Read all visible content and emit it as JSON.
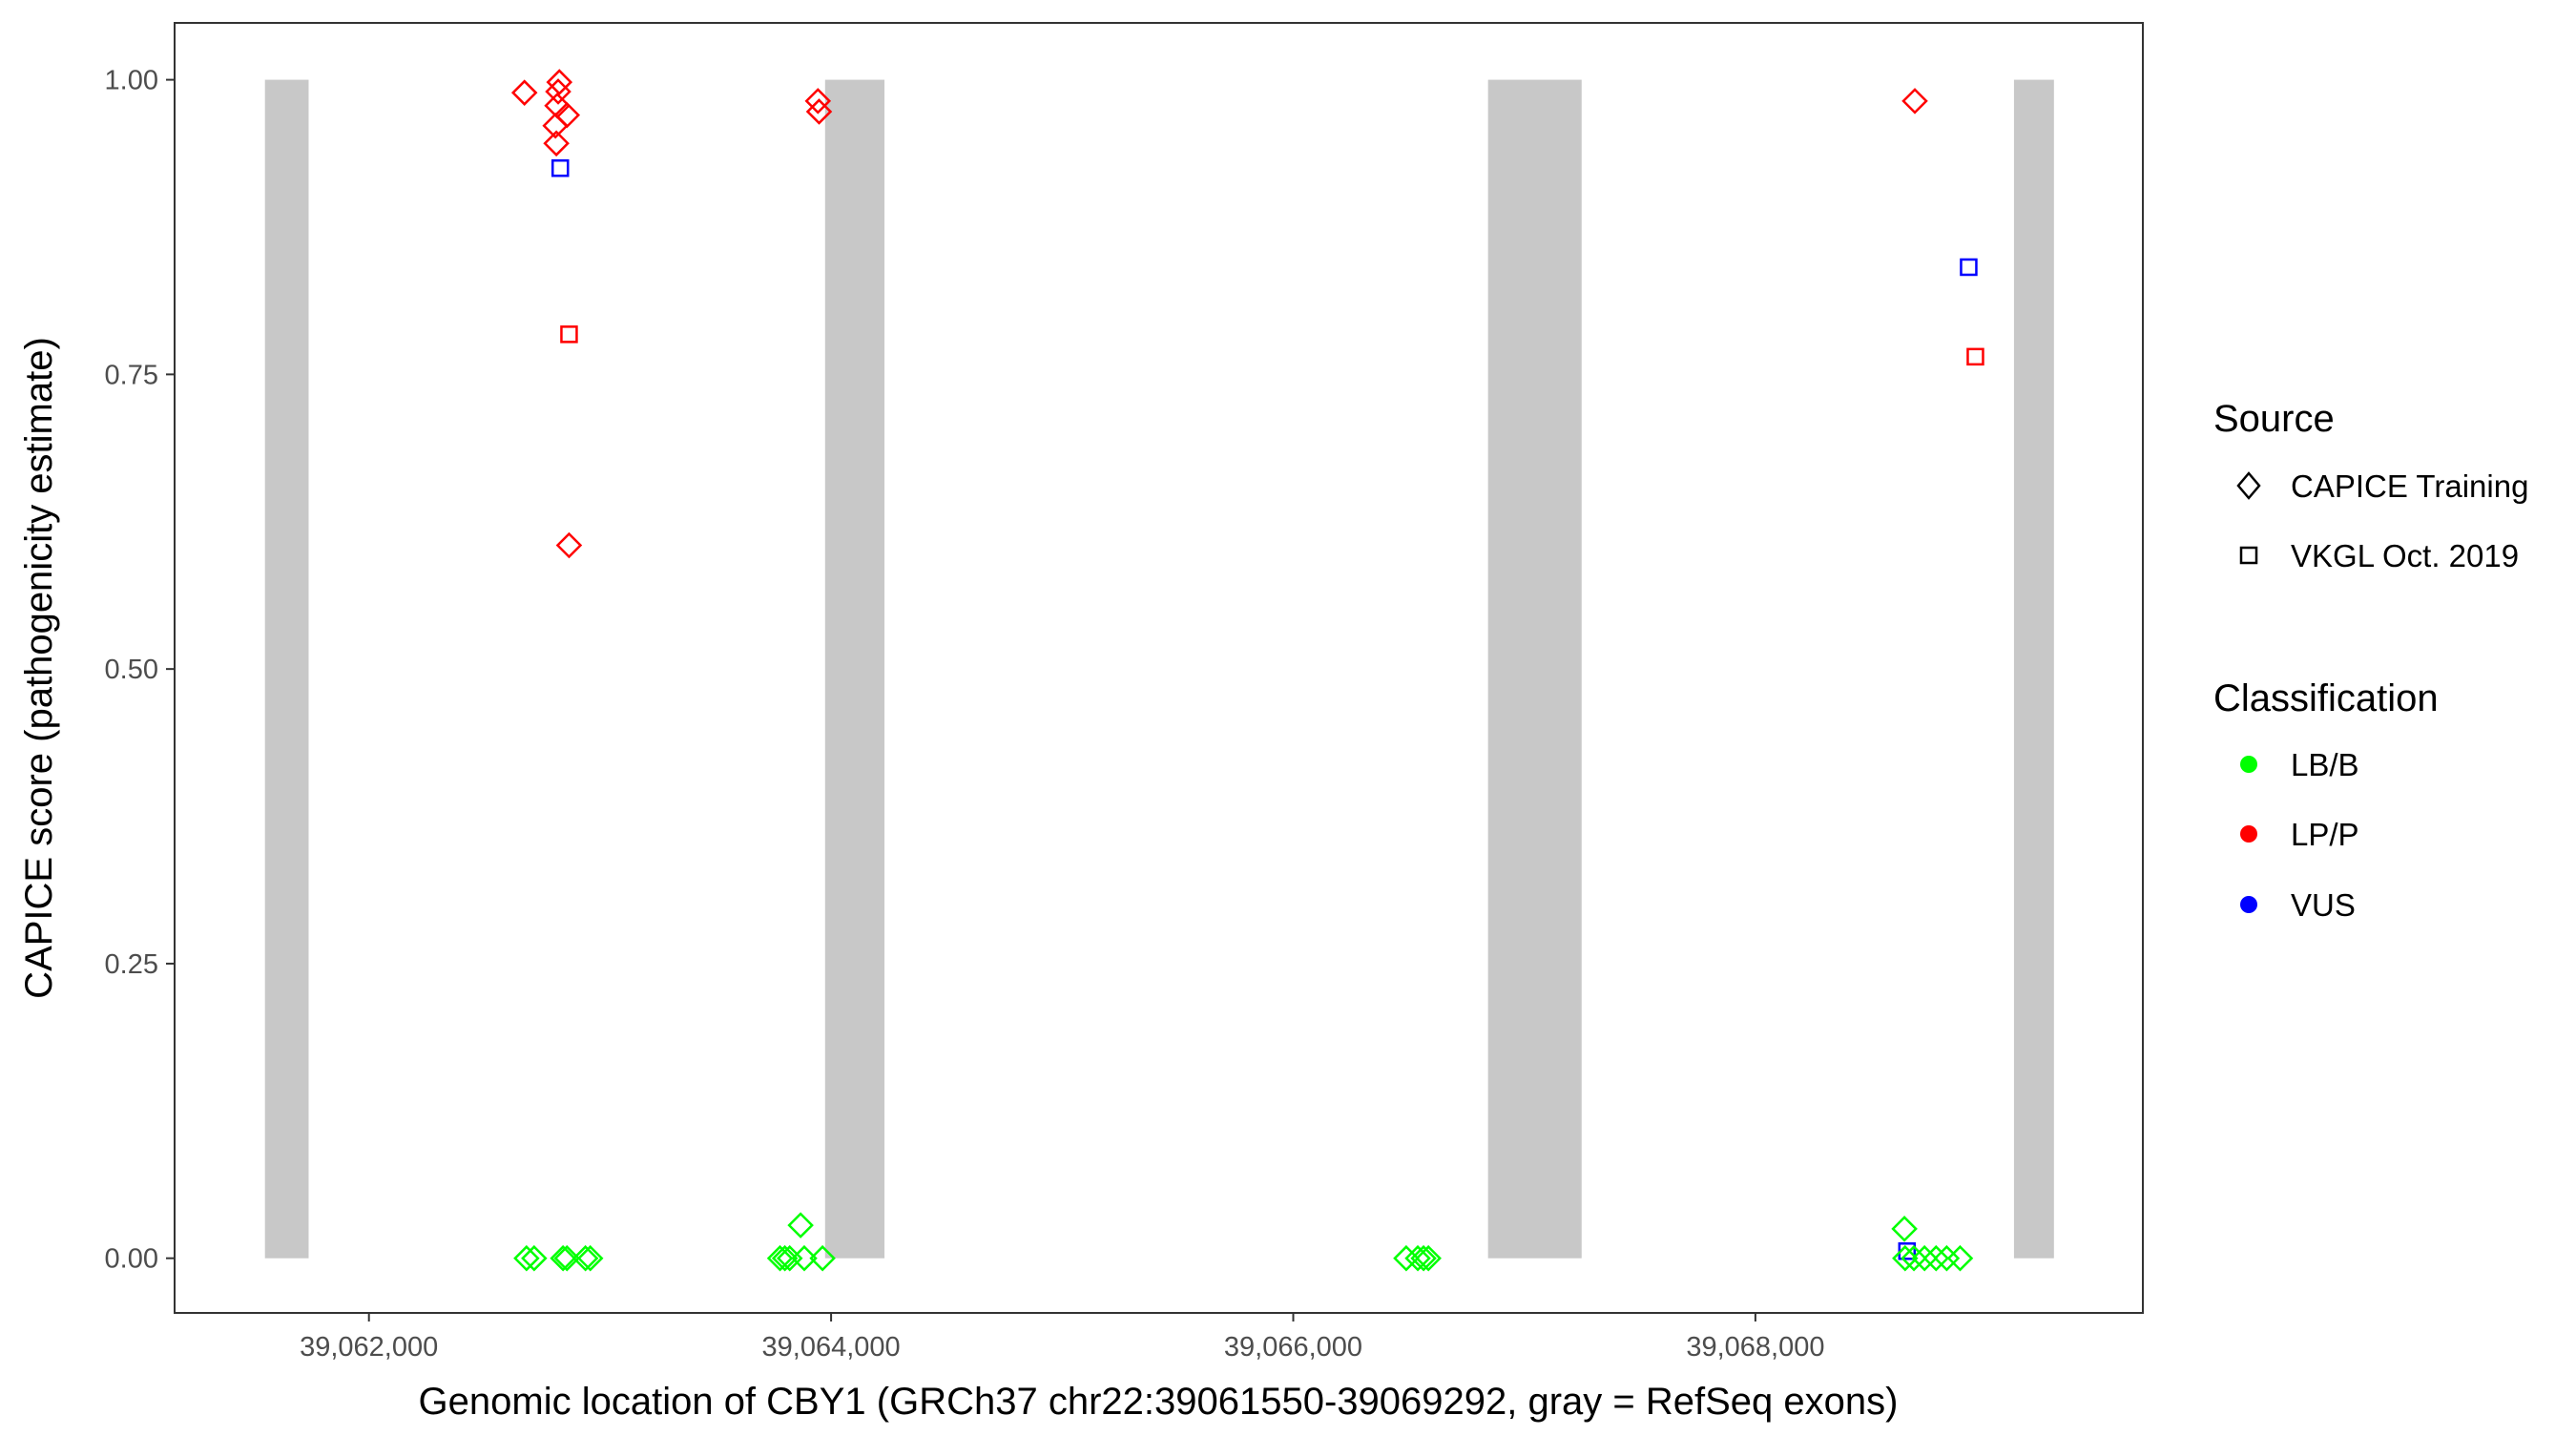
{
  "chart_data": {
    "type": "scatter",
    "title": "",
    "xlabel": "Genomic location of CBY1 (GRCh37 chr22:39061550-39069292, gray = RefSeq exons)",
    "ylabel": "CAPICE score (pathogenicity estimate)",
    "xlim": [
      39061400,
      39069650
    ],
    "ylim": [
      -0.047,
      1.048
    ],
    "x_ticks": [
      39062000,
      39064000,
      39066000,
      39068000
    ],
    "x_tick_labels": [
      "39,062,000",
      "39,064,000",
      "39,066,000",
      "39,068,000"
    ],
    "y_ticks": [
      0,
      0.25,
      0.5,
      0.75,
      1.0
    ],
    "y_tick_labels": [
      "0.00",
      "0.25",
      "0.50",
      "0.75",
      "1.00"
    ],
    "grid": false,
    "exons": [
      {
        "start": 39061550,
        "end": 39061739
      },
      {
        "start": 39063974,
        "end": 39064231
      },
      {
        "start": 39066843,
        "end": 39067248
      },
      {
        "start": 39069119,
        "end": 39069292
      }
    ],
    "exon_color": "#c8c8c8",
    "legend_placement": "right",
    "legend": {
      "source_title": "Source",
      "source_items": [
        {
          "label": "CAPICE Training",
          "shape": "diamond"
        },
        {
          "label": "VKGL Oct. 2019",
          "shape": "square"
        }
      ],
      "class_title": "Classification",
      "class_items": [
        {
          "label": "LB/B",
          "color": "#00ff00"
        },
        {
          "label": "LP/P",
          "color": "#ff0000"
        },
        {
          "label": "VUS",
          "color": "#0000ff"
        }
      ]
    },
    "points": [
      {
        "x": 39062673,
        "y": 0.989,
        "source": "CAPICE Training",
        "class": "LP/P"
      },
      {
        "x": 39062824,
        "y": 0.998,
        "source": "CAPICE Training",
        "class": "LP/P"
      },
      {
        "x": 39062819,
        "y": 0.99,
        "source": "CAPICE Training",
        "class": "LP/P"
      },
      {
        "x": 39062815,
        "y": 0.978,
        "source": "CAPICE Training",
        "class": "LP/P"
      },
      {
        "x": 39062857,
        "y": 0.97,
        "source": "CAPICE Training",
        "class": "LP/P"
      },
      {
        "x": 39062807,
        "y": 0.961,
        "source": "CAPICE Training",
        "class": "LP/P"
      },
      {
        "x": 39062811,
        "y": 0.946,
        "source": "CAPICE Training",
        "class": "LP/P"
      },
      {
        "x": 39062866,
        "y": 0.605,
        "source": "CAPICE Training",
        "class": "LP/P"
      },
      {
        "x": 39063943,
        "y": 0.982,
        "source": "CAPICE Training",
        "class": "LP/P"
      },
      {
        "x": 39063948,
        "y": 0.973,
        "source": "CAPICE Training",
        "class": "LP/P"
      },
      {
        "x": 39068690,
        "y": 0.982,
        "source": "CAPICE Training",
        "class": "LP/P"
      },
      {
        "x": 39062828,
        "y": 0.925,
        "source": "VKGL Oct. 2019",
        "class": "VUS"
      },
      {
        "x": 39062866,
        "y": 0.784,
        "source": "VKGL Oct. 2019",
        "class": "LP/P"
      },
      {
        "x": 39068923,
        "y": 0.841,
        "source": "VKGL Oct. 2019",
        "class": "VUS"
      },
      {
        "x": 39068952,
        "y": 0.765,
        "source": "VKGL Oct. 2019",
        "class": "LP/P"
      },
      {
        "x": 39068656,
        "y": 0.006,
        "source": "VKGL Oct. 2019",
        "class": "VUS"
      },
      {
        "x": 39062682,
        "y": 0.0,
        "source": "CAPICE Training",
        "class": "LB/B"
      },
      {
        "x": 39062715,
        "y": 0.0,
        "source": "CAPICE Training",
        "class": "LB/B"
      },
      {
        "x": 39062840,
        "y": 0.0,
        "source": "CAPICE Training",
        "class": "LB/B"
      },
      {
        "x": 39062857,
        "y": 0.0,
        "source": "CAPICE Training",
        "class": "LB/B"
      },
      {
        "x": 39062937,
        "y": 0.0,
        "source": "CAPICE Training",
        "class": "LB/B"
      },
      {
        "x": 39062958,
        "y": 0.0,
        "source": "CAPICE Training",
        "class": "LB/B"
      },
      {
        "x": 39063779,
        "y": 0.0,
        "source": "CAPICE Training",
        "class": "LB/B"
      },
      {
        "x": 39063800,
        "y": 0.0,
        "source": "CAPICE Training",
        "class": "LB/B"
      },
      {
        "x": 39063821,
        "y": 0.0,
        "source": "CAPICE Training",
        "class": "LB/B"
      },
      {
        "x": 39063884,
        "y": 0.0,
        "source": "CAPICE Training",
        "class": "LB/B"
      },
      {
        "x": 39063963,
        "y": 0.0,
        "source": "CAPICE Training",
        "class": "LB/B"
      },
      {
        "x": 39063868,
        "y": 0.028,
        "source": "CAPICE Training",
        "class": "LB/B"
      },
      {
        "x": 39066489,
        "y": 0.0,
        "source": "CAPICE Training",
        "class": "LB/B"
      },
      {
        "x": 39066539,
        "y": 0.0,
        "source": "CAPICE Training",
        "class": "LB/B"
      },
      {
        "x": 39066564,
        "y": 0.0,
        "source": "CAPICE Training",
        "class": "LB/B"
      },
      {
        "x": 39066585,
        "y": 0.0,
        "source": "CAPICE Training",
        "class": "LB/B"
      },
      {
        "x": 39068645,
        "y": 0.025,
        "source": "CAPICE Training",
        "class": "LB/B"
      },
      {
        "x": 39068648,
        "y": 0.0,
        "source": "CAPICE Training",
        "class": "LB/B"
      },
      {
        "x": 39068686,
        "y": 0.0,
        "source": "CAPICE Training",
        "class": "LB/B"
      },
      {
        "x": 39068732,
        "y": 0.0,
        "source": "CAPICE Training",
        "class": "LB/B"
      },
      {
        "x": 39068782,
        "y": 0.0,
        "source": "CAPICE Training",
        "class": "LB/B"
      },
      {
        "x": 39068828,
        "y": 0.0,
        "source": "CAPICE Training",
        "class": "LB/B"
      },
      {
        "x": 39068886,
        "y": 0.0,
        "source": "CAPICE Training",
        "class": "LB/B"
      }
    ]
  }
}
